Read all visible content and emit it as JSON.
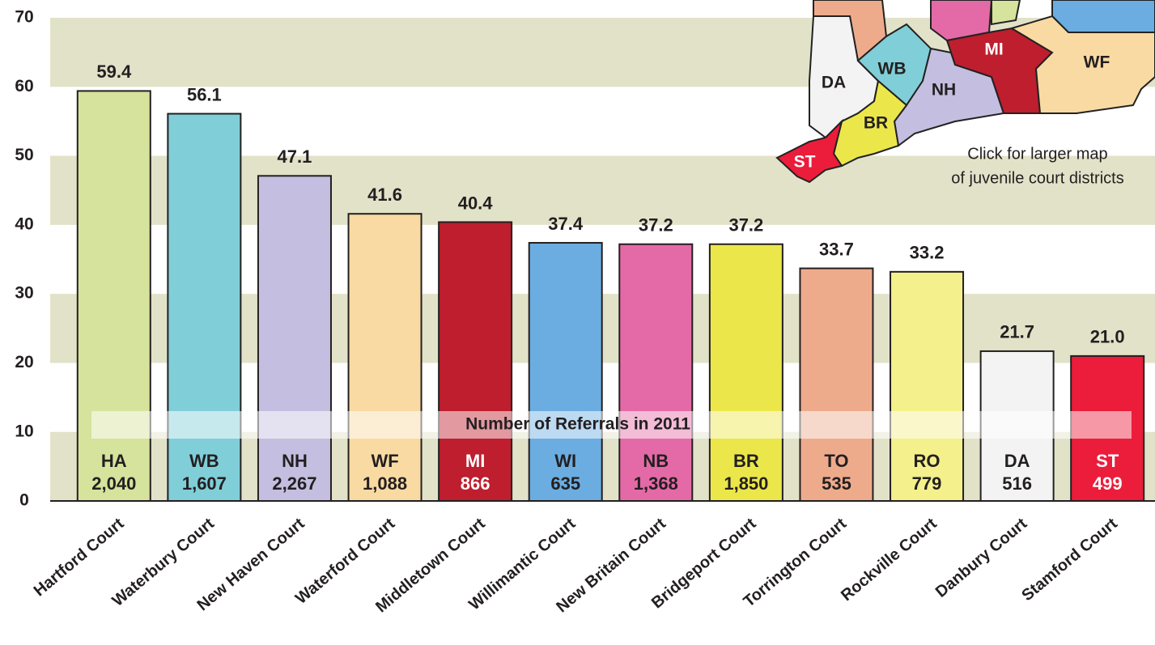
{
  "chart_data": {
    "type": "bar",
    "categories": [
      "Hartford Court",
      "Waterbury Court",
      "New Haven Court",
      "Waterford Court",
      "Middletown Court",
      "Willimantic Court",
      "New Britain Court",
      "Bridgeport Court",
      "Torrington Court",
      "Rockville Court",
      "Danbury Court",
      "Stamford Court"
    ],
    "values": [
      59.4,
      56.1,
      47.1,
      41.6,
      40.4,
      37.4,
      37.2,
      37.2,
      33.7,
      33.2,
      21.7,
      21.0
    ],
    "value_labels": [
      "59.4",
      "56.1",
      "47.1",
      "41.6",
      "40.4",
      "37.4",
      "37.2",
      "37.2",
      "33.7",
      "33.2",
      "21.7",
      "21.0"
    ],
    "colors": [
      "#d5e39c",
      "#80ced8",
      "#c4bfe0",
      "#f9daa2",
      "#be1e2d",
      "#6badE0",
      "#e46aa7",
      "#ebe74a",
      "#eeab8c",
      "#f4f08b",
      "#f3f3f3",
      "#ec1c3b"
    ],
    "codes": [
      "HA",
      "WB",
      "NH",
      "WF",
      "MI",
      "WI",
      "NB",
      "BR",
      "TO",
      "RO",
      "DA",
      "ST"
    ],
    "referrals": [
      2040,
      1607,
      2267,
      1088,
      866,
      635,
      1368,
      1850,
      535,
      779,
      516,
      499
    ],
    "referral_labels": [
      "2,040",
      "1,607",
      "2,267",
      "1,088",
      "866",
      "635",
      "1,368",
      "1,850",
      "535",
      "779",
      "516",
      "499"
    ],
    "referrals_title": "Number of Referrals in 2011",
    "ylim": [
      0,
      70
    ],
    "yticks": [
      0,
      10,
      20,
      30,
      40,
      50,
      60,
      70
    ],
    "grid": "bands"
  },
  "map": {
    "labels": [
      "DA",
      "WB",
      "NH",
      "MI",
      "WF",
      "BR",
      "ST"
    ],
    "caption": [
      "Click for larger map",
      "of juvenile court districts"
    ]
  }
}
